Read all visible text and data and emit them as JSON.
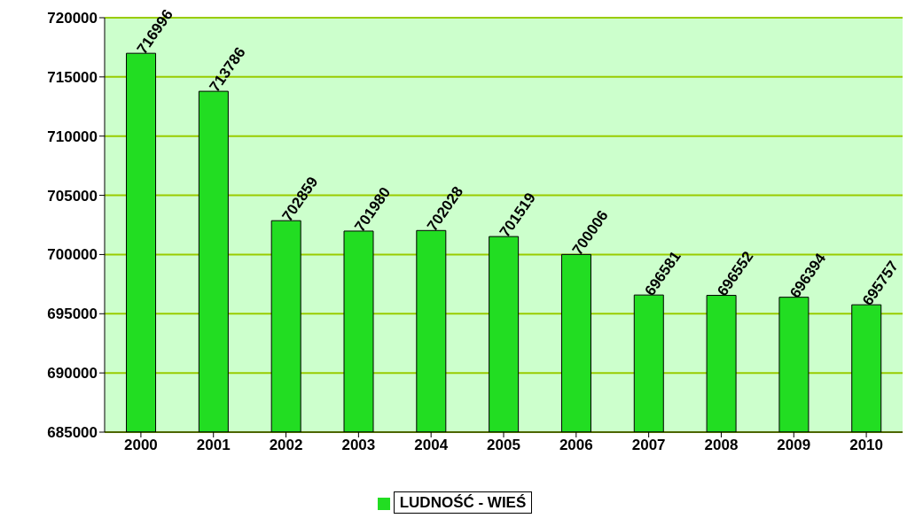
{
  "chart_data": {
    "type": "bar",
    "categories": [
      "2000",
      "2001",
      "2002",
      "2003",
      "2004",
      "2005",
      "2006",
      "2007",
      "2008",
      "2009",
      "2010"
    ],
    "series": [
      {
        "name": "LUDNOŚĆ - WIEŚ",
        "color": "#22dd22",
        "values": [
          716996,
          713786,
          702859,
          701980,
          702028,
          701519,
          700006,
          696581,
          696552,
          696394,
          695757
        ]
      }
    ],
    "ylim": [
      685000,
      720000
    ],
    "yticks": [
      685000,
      690000,
      695000,
      700000,
      705000,
      710000,
      715000,
      720000
    ],
    "grid": "y",
    "legend": "bottom",
    "data_labels": true
  }
}
